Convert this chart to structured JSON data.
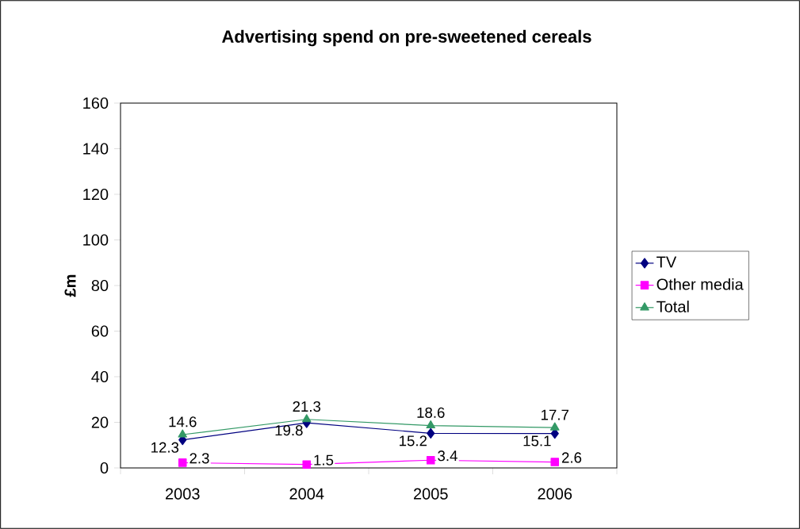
{
  "chart_data": {
    "type": "line",
    "title": "Advertising spend on pre-sweetened cereals",
    "ylabel": "£m",
    "categories": [
      "2003",
      "2004",
      "2005",
      "2006"
    ],
    "series": [
      {
        "name": "TV",
        "color": "#000080",
        "marker": "diamond",
        "values": [
          12.3,
          19.8,
          15.2,
          15.1
        ]
      },
      {
        "name": "Other media",
        "color": "#ff00ff",
        "marker": "square",
        "values": [
          2.3,
          1.5,
          3.4,
          2.6
        ]
      },
      {
        "name": "Total",
        "color": "#339966",
        "marker": "triangle",
        "values": [
          14.6,
          21.3,
          18.6,
          17.7
        ]
      }
    ],
    "ylim": [
      0,
      160
    ],
    "yticks": [
      0,
      20,
      40,
      60,
      80,
      100,
      120,
      140,
      160
    ],
    "data_labels": true,
    "legend": "right",
    "grid": false
  }
}
